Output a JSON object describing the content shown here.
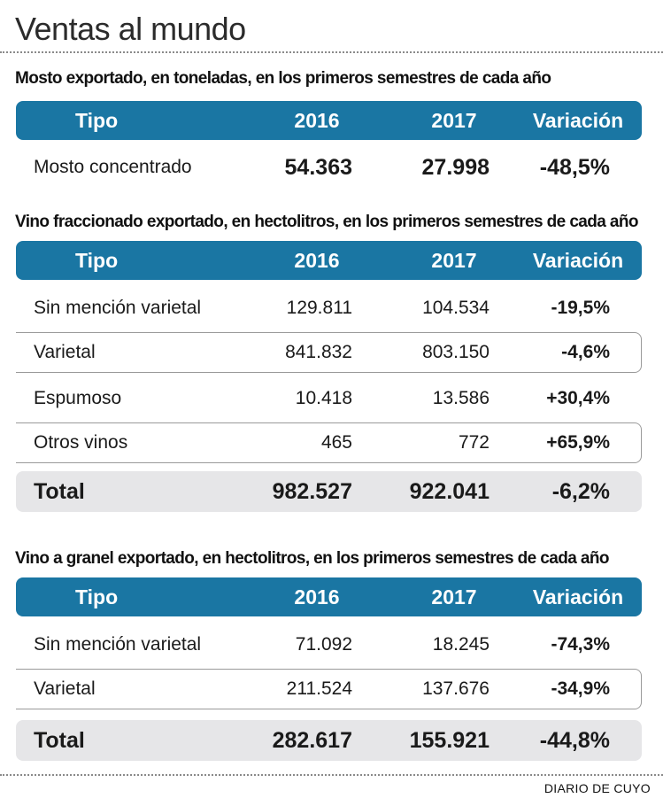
{
  "title": "Ventas al mundo",
  "headers": {
    "tipo": "Tipo",
    "y2016": "2016",
    "y2017": "2017",
    "variacion": "Variación"
  },
  "mosto": {
    "title": "Mosto exportado, en toneladas, en los primeros semestres de cada año",
    "rows": [
      {
        "tipo": "Mosto concentrado",
        "y2016": "54.363",
        "y2017": "27.998",
        "variacion": "-48,5%"
      }
    ]
  },
  "fraccionado": {
    "title": "Vino fraccionado exportado, en hectolitros, en los primeros semestres de cada año",
    "rows": [
      {
        "tipo": "Sin mención varietal",
        "y2016": "129.811",
        "y2017": "104.534",
        "variacion": "-19,5%"
      },
      {
        "tipo": "Varietal",
        "y2016": "841.832",
        "y2017": "803.150",
        "variacion": "-4,6%"
      },
      {
        "tipo": "Espumoso",
        "y2016": "10.418",
        "y2017": "13.586",
        "variacion": "+30,4%"
      },
      {
        "tipo": "Otros vinos",
        "y2016": "465",
        "y2017": "772",
        "variacion": "+65,9%"
      }
    ],
    "total": {
      "tipo": "Total",
      "y2016": "982.527",
      "y2017": "922.041",
      "variacion": "-6,2%"
    }
  },
  "granel": {
    "title": "Vino a granel exportado, en hectolitros, en los primeros semestres de cada año",
    "rows": [
      {
        "tipo": "Sin mención varietal",
        "y2016": "71.092",
        "y2017": "18.245",
        "variacion": "-74,3%"
      },
      {
        "tipo": "Varietal",
        "y2016": "211.524",
        "y2017": "137.676",
        "variacion": "-34,9%"
      }
    ],
    "total": {
      "tipo": "Total",
      "y2016": "282.617",
      "y2017": "155.921",
      "variacion": "-44,8%"
    }
  },
  "source": "DIARIO DE CUYO"
}
